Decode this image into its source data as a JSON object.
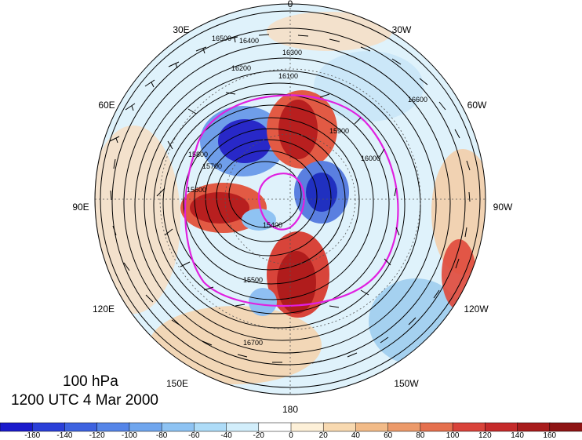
{
  "title": {
    "level": "100 hPa",
    "time": "1200 UTC 4 Mar 2000"
  },
  "longitude_labels": [
    {
      "text": "0",
      "lon": 0
    },
    {
      "text": "30W",
      "lon": -30
    },
    {
      "text": "60W",
      "lon": -60
    },
    {
      "text": "90W",
      "lon": -90
    },
    {
      "text": "120W",
      "lon": -120
    },
    {
      "text": "150W",
      "lon": -150
    },
    {
      "text": "180",
      "lon": 180
    },
    {
      "text": "150E",
      "lon": 150
    },
    {
      "text": "120E",
      "lon": 120
    },
    {
      "text": "90E",
      "lon": 90
    },
    {
      "text": "60E",
      "lon": 60
    },
    {
      "text": "30E",
      "lon": 30
    }
  ],
  "contour_labels": [
    "16500",
    "16400",
    "16300",
    "16200",
    "16100",
    "16000",
    "15900",
    "15800",
    "15700",
    "15600",
    "15500",
    "15400",
    "16600",
    "16700"
  ],
  "colorbar": {
    "ticks": [
      "-160",
      "-140",
      "-120",
      "-100",
      "-80",
      "-60",
      "-40",
      "-20",
      "0",
      "20",
      "40",
      "60",
      "80",
      "100",
      "120",
      "140",
      "160"
    ],
    "colors": [
      "#1a1acc",
      "#2a3fd8",
      "#3d62e0",
      "#5585e8",
      "#70a6ee",
      "#8ec3f3",
      "#aedcf8",
      "#d2eefb",
      "#ffffff",
      "#fdf0d8",
      "#f8d9b0",
      "#f2bb88",
      "#ec9a6a",
      "#e5704e",
      "#d9433a",
      "#c52a2a",
      "#a81c1c",
      "#8e1414"
    ]
  },
  "colors": {
    "magenta_contour": "#e020e0",
    "height_contour": "#000000"
  }
}
